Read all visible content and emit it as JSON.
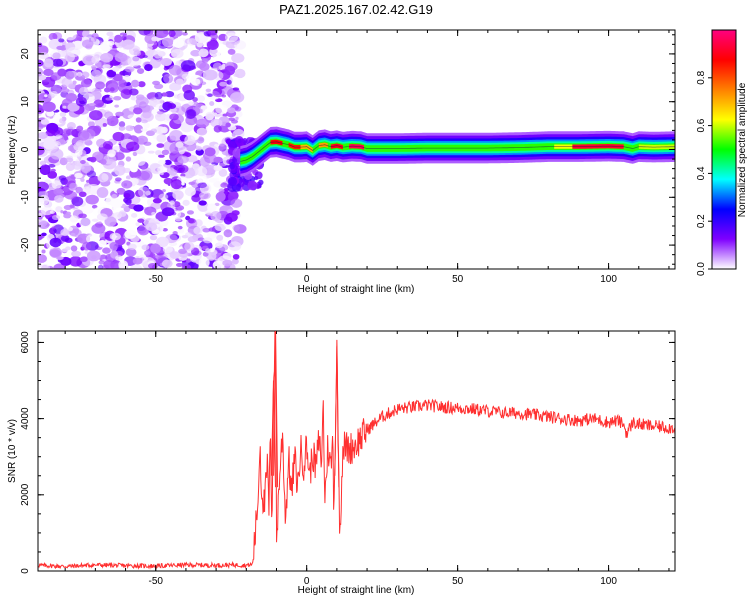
{
  "title": "PAZ1.2025.167.02.42.G19",
  "chart_data": [
    {
      "type": "heatmap",
      "panel": "top",
      "xlabel": "Height of straight line (km)",
      "ylabel": "Frequency (Hz)",
      "xlim": [
        -89,
        122
      ],
      "ylim": [
        -25,
        25
      ],
      "xticks": [
        -50,
        0,
        50,
        100
      ],
      "yticks": [
        -20,
        -10,
        0,
        10,
        20
      ],
      "noise_region_x": [
        -89,
        -22
      ],
      "signal_track": {
        "x": [
          -22,
          -20,
          -18,
          -16,
          -14,
          -12,
          -10,
          -8,
          -6,
          -4,
          -2,
          0,
          2,
          4,
          6,
          8,
          10,
          12,
          15,
          18,
          20,
          25,
          30,
          40,
          50,
          60,
          70,
          80,
          90,
          100,
          105,
          108,
          110,
          115,
          122
        ],
        "y": [
          -2.5,
          -2.2,
          -1.5,
          -0.5,
          0.5,
          1.5,
          1.6,
          1.3,
          1.0,
          0.5,
          0.5,
          0.6,
          -0.2,
          0.8,
          1.0,
          0.6,
          0.8,
          0.5,
          0.7,
          0.6,
          0.2,
          0.2,
          0.2,
          0.3,
          0.3,
          0.3,
          0.4,
          0.6,
          0.6,
          0.7,
          0.6,
          0.2,
          0.6,
          0.5,
          0.6
        ]
      },
      "colorbar": {
        "label": "Normalized spectral amplitude",
        "range": [
          0,
          1
        ],
        "ticks": [
          0.0,
          0.2,
          0.4,
          0.6,
          0.8
        ],
        "colors": [
          "#ffffff",
          "#7f00ff",
          "#0000ff",
          "#00ffff",
          "#00ff00",
          "#ffff00",
          "#ff8000",
          "#ff0000",
          "#ff0080"
        ]
      }
    },
    {
      "type": "line",
      "panel": "bottom",
      "xlabel": "Height of straight line (km)",
      "ylabel": "SNR (10 * v/v)",
      "xlim": [
        -89,
        122
      ],
      "ylim": [
        0,
        6300
      ],
      "xticks": [
        -50,
        0,
        50,
        100
      ],
      "yticks": [
        0,
        2000,
        4000,
        6000
      ],
      "series": [
        {
          "color": "#ff3030",
          "x": [
            -89,
            -80,
            -70,
            -60,
            -50,
            -40,
            -30,
            -24,
            -20,
            -18,
            -17,
            -16,
            -15.5,
            -15,
            -14,
            -13,
            -12.5,
            -12,
            -11.5,
            -11,
            -10.3,
            -10,
            -9,
            -8,
            -7,
            -6,
            -5,
            -4,
            -3,
            -2,
            -1,
            0,
            1,
            2,
            3,
            4,
            5,
            5.5,
            6,
            7,
            8,
            8.7,
            9,
            9.5,
            10,
            10.5,
            11,
            12,
            14,
            16,
            18,
            20,
            25,
            30,
            35,
            40,
            45,
            50,
            55,
            60,
            65,
            70,
            75,
            80,
            85,
            90,
            95,
            100,
            103,
            105,
            106,
            108,
            110,
            115,
            122
          ],
          "y": [
            150,
            120,
            160,
            140,
            130,
            160,
            150,
            160,
            150,
            170,
            1000,
            2000,
            3500,
            2200,
            1700,
            2800,
            1600,
            3600,
            1200,
            5000,
            6300,
            800,
            2500,
            3600,
            1300,
            3000,
            2000,
            3000,
            2200,
            3200,
            2800,
            3300,
            2500,
            3100,
            2700,
            3400,
            2900,
            4500,
            1800,
            3300,
            2700,
            3500,
            1500,
            3600,
            5900,
            3000,
            1000,
            3300,
            3200,
            3300,
            3500,
            3700,
            4050,
            4250,
            4300,
            4350,
            4300,
            4280,
            4250,
            4200,
            4150,
            4150,
            4100,
            4050,
            4000,
            3950,
            4000,
            3900,
            3950,
            3850,
            3600,
            3900,
            3850,
            3800,
            3750
          ]
        }
      ]
    }
  ]
}
